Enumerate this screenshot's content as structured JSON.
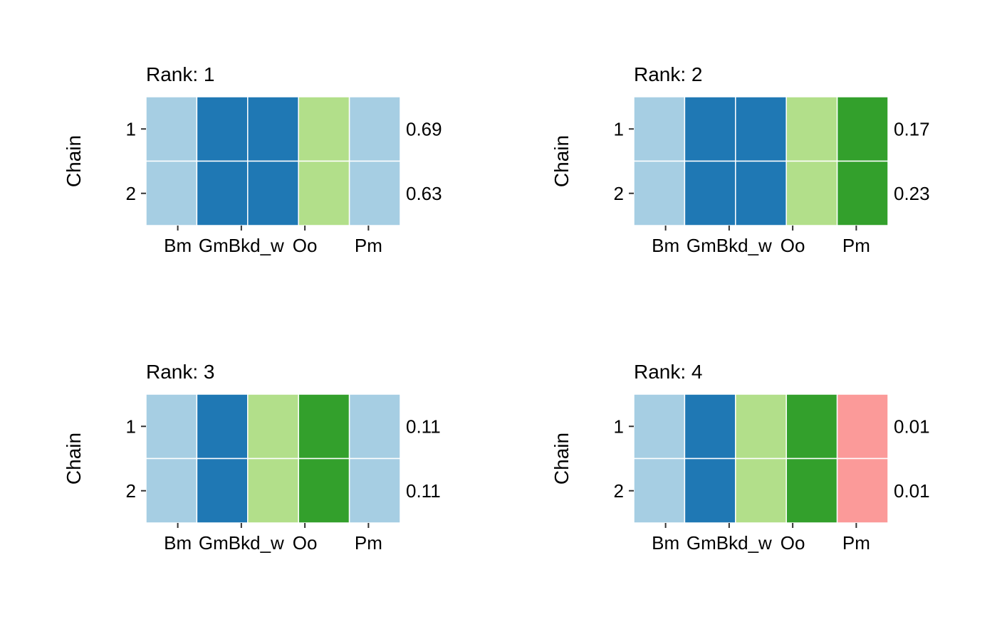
{
  "chart_data": [
    {
      "type": "heatmap",
      "title": "Rank: 1",
      "ylabel": "Chain",
      "xlabel": "",
      "x_categories": [
        "Bm",
        "GmBkd_w",
        "Oo",
        "Pm"
      ],
      "columns": 5,
      "rows": [
        {
          "label": "1",
          "value_label": "0.69",
          "cells": [
            "light-blue",
            "dark-blue",
            "dark-blue",
            "light-green",
            "light-blue"
          ]
        },
        {
          "label": "2",
          "value_label": "0.63",
          "cells": [
            "light-blue",
            "dark-blue",
            "dark-blue",
            "light-green",
            "light-blue"
          ]
        }
      ]
    },
    {
      "type": "heatmap",
      "title": "Rank: 2",
      "ylabel": "Chain",
      "xlabel": "",
      "x_categories": [
        "Bm",
        "GmBkd_w",
        "Oo",
        "Pm"
      ],
      "columns": 5,
      "rows": [
        {
          "label": "1",
          "value_label": "0.17",
          "cells": [
            "light-blue",
            "dark-blue",
            "dark-blue",
            "light-green",
            "dark-green"
          ]
        },
        {
          "label": "2",
          "value_label": "0.23",
          "cells": [
            "light-blue",
            "dark-blue",
            "dark-blue",
            "light-green",
            "dark-green"
          ]
        }
      ]
    },
    {
      "type": "heatmap",
      "title": "Rank: 3",
      "ylabel": "Chain",
      "xlabel": "",
      "x_categories": [
        "Bm",
        "GmBkd_w",
        "Oo",
        "Pm"
      ],
      "columns": 5,
      "rows": [
        {
          "label": "1",
          "value_label": "0.11",
          "cells": [
            "light-blue",
            "dark-blue",
            "light-green",
            "dark-green",
            "light-blue"
          ]
        },
        {
          "label": "2",
          "value_label": "0.11",
          "cells": [
            "light-blue",
            "dark-blue",
            "light-green",
            "dark-green",
            "light-blue"
          ]
        }
      ]
    },
    {
      "type": "heatmap",
      "title": "Rank: 4",
      "ylabel": "Chain",
      "xlabel": "",
      "x_categories": [
        "Bm",
        "GmBkd_w",
        "Oo",
        "Pm"
      ],
      "columns": 5,
      "rows": [
        {
          "label": "1",
          "value_label": "0.01",
          "cells": [
            "light-blue",
            "dark-blue",
            "light-green",
            "dark-green",
            "pink"
          ]
        },
        {
          "label": "2",
          "value_label": "0.01",
          "cells": [
            "light-blue",
            "dark-blue",
            "light-green",
            "dark-green",
            "pink"
          ]
        }
      ]
    }
  ],
  "colors": {
    "light-blue": "#A6CEE3",
    "dark-blue": "#1F78B4",
    "light-green": "#B2DF8A",
    "dark-green": "#33A02C",
    "pink": "#FB9A99",
    "cell_border": "#FFFFFF",
    "tick": "#333333"
  }
}
